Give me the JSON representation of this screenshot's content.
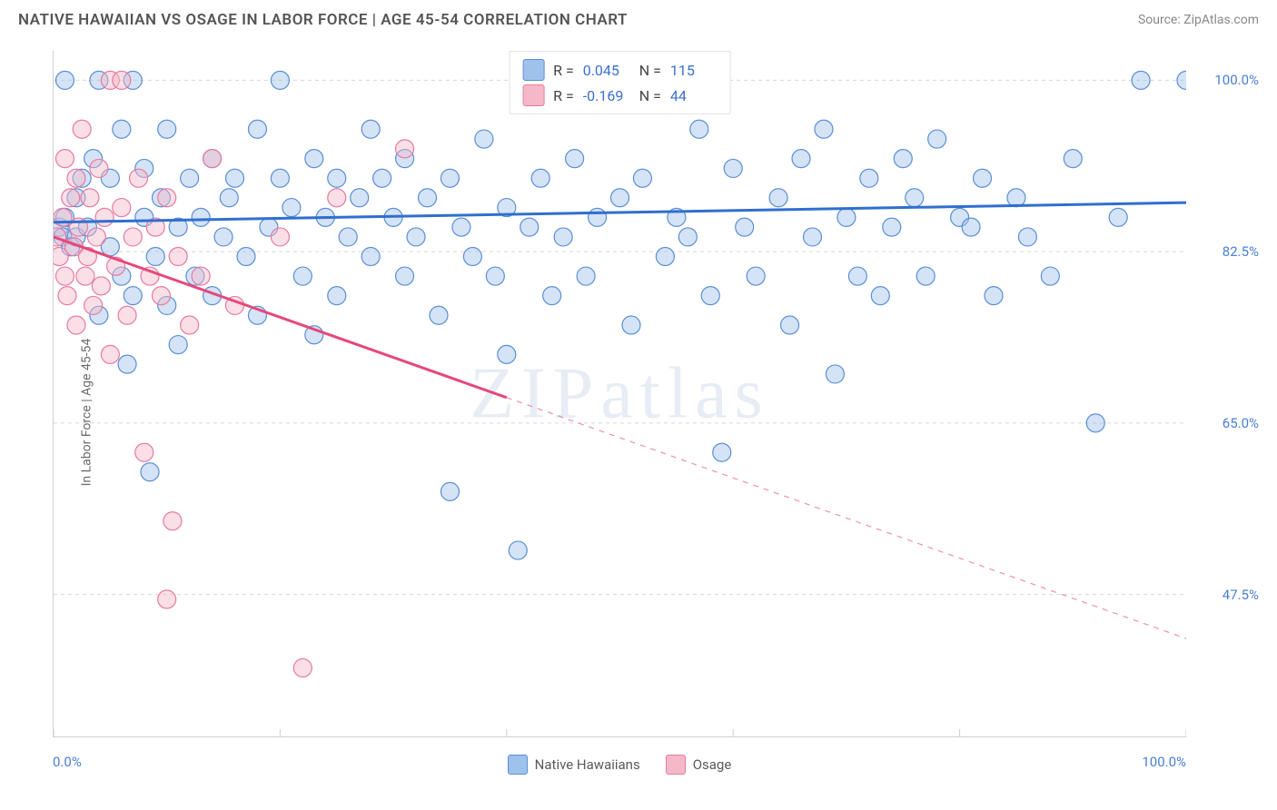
{
  "header": {
    "title": "NATIVE HAWAIIAN VS OSAGE IN LABOR FORCE | AGE 45-54 CORRELATION CHART",
    "source": "Source: ZipAtlas.com"
  },
  "chart": {
    "type": "scatter",
    "ylabel": "In Labor Force | Age 45-54",
    "watermark": "ZIPatlas",
    "xlim": [
      0,
      100
    ],
    "ylim": [
      33,
      103
    ],
    "x_axis": {
      "ticks": [
        0,
        20,
        40,
        60,
        80,
        100
      ],
      "labels": {
        "min": "0.0%",
        "max": "100.0%"
      },
      "label_color": "#4a7fd6"
    },
    "y_axis": {
      "gridlines": [
        47.5,
        65.0,
        82.5,
        100.0
      ],
      "labels": [
        "47.5%",
        "65.0%",
        "82.5%",
        "100.0%"
      ],
      "label_color": "#4a7fd6",
      "grid_color": "#d8d8d8",
      "grid_dash": "4,4"
    },
    "background_color": "#ffffff",
    "marker_radius": 10,
    "marker_opacity": 0.45,
    "series": [
      {
        "name": "Native Hawaiians",
        "color_fill": "#9fc2ec",
        "color_stroke": "#5a8fd6",
        "R": "0.045",
        "N": "115",
        "trend": {
          "x1": 0,
          "y1": 85.5,
          "x2": 100,
          "y2": 87.5,
          "color": "#2f6fd0",
          "width": 3,
          "dash_after_x": null
        },
        "points": [
          [
            0.5,
            85
          ],
          [
            0.8,
            84
          ],
          [
            1,
            100
          ],
          [
            1,
            86
          ],
          [
            1.5,
            83
          ],
          [
            2,
            88
          ],
          [
            2,
            84
          ],
          [
            2.5,
            90
          ],
          [
            3,
            85
          ],
          [
            3.5,
            92
          ],
          [
            4,
            100
          ],
          [
            4,
            76
          ],
          [
            5,
            90
          ],
          [
            5,
            83
          ],
          [
            6,
            95
          ],
          [
            6,
            80
          ],
          [
            6.5,
            71
          ],
          [
            7,
            78
          ],
          [
            7,
            100
          ],
          [
            8,
            86
          ],
          [
            8,
            91
          ],
          [
            8.5,
            60
          ],
          [
            9,
            82
          ],
          [
            9.5,
            88
          ],
          [
            10,
            77
          ],
          [
            10,
            95
          ],
          [
            11,
            73
          ],
          [
            11,
            85
          ],
          [
            12,
            90
          ],
          [
            12.5,
            80
          ],
          [
            13,
            86
          ],
          [
            14,
            92
          ],
          [
            14,
            78
          ],
          [
            15,
            84
          ],
          [
            15.5,
            88
          ],
          [
            16,
            90
          ],
          [
            17,
            82
          ],
          [
            18,
            95
          ],
          [
            18,
            76
          ],
          [
            19,
            85
          ],
          [
            20,
            90
          ],
          [
            20,
            100
          ],
          [
            21,
            87
          ],
          [
            22,
            80
          ],
          [
            23,
            92
          ],
          [
            23,
            74
          ],
          [
            24,
            86
          ],
          [
            25,
            78
          ],
          [
            25,
            90
          ],
          [
            26,
            84
          ],
          [
            27,
            88
          ],
          [
            28,
            82
          ],
          [
            28,
            95
          ],
          [
            29,
            90
          ],
          [
            30,
            86
          ],
          [
            31,
            80
          ],
          [
            31,
            92
          ],
          [
            32,
            84
          ],
          [
            33,
            88
          ],
          [
            34,
            76
          ],
          [
            35,
            90
          ],
          [
            35,
            58
          ],
          [
            36,
            85
          ],
          [
            37,
            82
          ],
          [
            38,
            94
          ],
          [
            39,
            80
          ],
          [
            40,
            87
          ],
          [
            40,
            72
          ],
          [
            41,
            52
          ],
          [
            42,
            85
          ],
          [
            43,
            90
          ],
          [
            44,
            78
          ],
          [
            45,
            84
          ],
          [
            46,
            92
          ],
          [
            47,
            80
          ],
          [
            48,
            86
          ],
          [
            50,
            88
          ],
          [
            51,
            75
          ],
          [
            52,
            90
          ],
          [
            54,
            82
          ],
          [
            55,
            86
          ],
          [
            56,
            84
          ],
          [
            57,
            95
          ],
          [
            58,
            78
          ],
          [
            59,
            62
          ],
          [
            60,
            91
          ],
          [
            61,
            85
          ],
          [
            62,
            80
          ],
          [
            64,
            88
          ],
          [
            65,
            75
          ],
          [
            66,
            92
          ],
          [
            67,
            84
          ],
          [
            68,
            95
          ],
          [
            69,
            70
          ],
          [
            70,
            86
          ],
          [
            71,
            80
          ],
          [
            72,
            90
          ],
          [
            73,
            78
          ],
          [
            74,
            85
          ],
          [
            75,
            92
          ],
          [
            76,
            88
          ],
          [
            77,
            80
          ],
          [
            78,
            94
          ],
          [
            80,
            86
          ],
          [
            81,
            85
          ],
          [
            82,
            90
          ],
          [
            83,
            78
          ],
          [
            85,
            88
          ],
          [
            86,
            84
          ],
          [
            88,
            80
          ],
          [
            90,
            92
          ],
          [
            92,
            65
          ],
          [
            94,
            86
          ],
          [
            96,
            100
          ],
          [
            100,
            100
          ]
        ]
      },
      {
        "name": "Osage",
        "color_fill": "#f5b8c8",
        "color_stroke": "#e77aa0",
        "R": "-0.169",
        "N": "44",
        "trend": {
          "x1": 0,
          "y1": 84,
          "x2": 100,
          "y2": 43,
          "color": "#e6487a",
          "width": 3,
          "dash_after_x": 40
        },
        "points": [
          [
            0.3,
            84
          ],
          [
            0.5,
            82
          ],
          [
            0.8,
            86
          ],
          [
            1,
            92
          ],
          [
            1,
            80
          ],
          [
            1.2,
            78
          ],
          [
            1.5,
            88
          ],
          [
            1.8,
            83
          ],
          [
            2,
            90
          ],
          [
            2,
            75
          ],
          [
            2.2,
            85
          ],
          [
            2.5,
            95
          ],
          [
            2.8,
            80
          ],
          [
            3,
            82
          ],
          [
            3.2,
            88
          ],
          [
            3.5,
            77
          ],
          [
            3.8,
            84
          ],
          [
            4,
            91
          ],
          [
            4.2,
            79
          ],
          [
            4.5,
            86
          ],
          [
            5,
            100
          ],
          [
            5,
            72
          ],
          [
            5.5,
            81
          ],
          [
            6,
            87
          ],
          [
            6,
            100
          ],
          [
            6.5,
            76
          ],
          [
            7,
            84
          ],
          [
            7.5,
            90
          ],
          [
            8,
            62
          ],
          [
            8.5,
            80
          ],
          [
            9,
            85
          ],
          [
            9.5,
            78
          ],
          [
            10,
            88
          ],
          [
            10,
            47
          ],
          [
            10.5,
            55
          ],
          [
            11,
            82
          ],
          [
            12,
            75
          ],
          [
            13,
            80
          ],
          [
            14,
            92
          ],
          [
            16,
            77
          ],
          [
            20,
            84
          ],
          [
            22,
            40
          ],
          [
            25,
            88
          ],
          [
            31,
            93
          ]
        ]
      }
    ],
    "stat_box": {
      "rows": [
        {
          "swatch_fill": "#9fc2ec",
          "swatch_stroke": "#5a8fd6",
          "r_label": "R =",
          "r_val": "0.045",
          "n_label": "N =",
          "n_val": "115"
        },
        {
          "swatch_fill": "#f5b8c8",
          "swatch_stroke": "#e77aa0",
          "r_label": "R =",
          "r_val": "-0.169",
          "n_label": "N =",
          "n_val": "44"
        }
      ]
    },
    "bottom_legend": [
      {
        "swatch_fill": "#9fc2ec",
        "swatch_stroke": "#5a8fd6",
        "label": "Native Hawaiians"
      },
      {
        "swatch_fill": "#f5b8c8",
        "swatch_stroke": "#e77aa0",
        "label": "Osage"
      }
    ]
  }
}
